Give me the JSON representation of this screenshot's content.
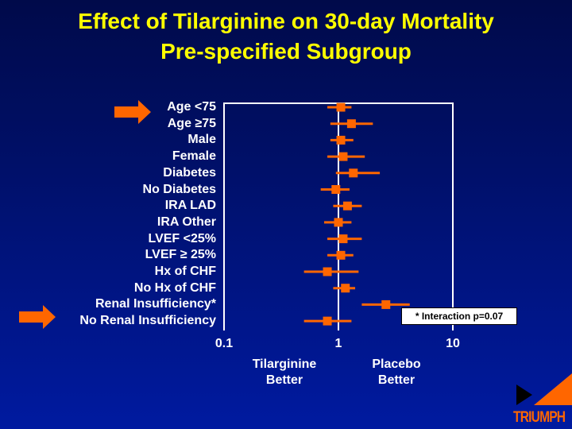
{
  "title": {
    "line1": "Effect of Tilarginine on 30-day Mortality",
    "line2": "Pre-specified Subgroup"
  },
  "chart_data": {
    "type": "forest",
    "xscale": "log",
    "xlim": [
      0.1,
      10
    ],
    "xticks": [
      "0.1",
      "1",
      "10"
    ],
    "reference_line": 1,
    "categories": [
      "Age <75",
      "Age ≥75",
      "Male",
      "Female",
      "Diabetes",
      "No Diabetes",
      "IRA LAD",
      "IRA Other",
      "LVEF <25%",
      "LVEF ≥ 25%",
      "Hx of CHF",
      "No Hx of CHF",
      "Renal Insufficiency*",
      "No Renal Insufficiency"
    ],
    "estimates": [
      1.05,
      1.3,
      1.05,
      1.1,
      1.35,
      0.95,
      1.2,
      1.0,
      1.1,
      1.05,
      0.8,
      1.15,
      2.6,
      0.8
    ],
    "ci_low": [
      0.8,
      0.85,
      0.85,
      0.8,
      0.95,
      0.7,
      0.9,
      0.75,
      0.8,
      0.8,
      0.5,
      0.9,
      1.6,
      0.5
    ],
    "ci_high": [
      1.3,
      2.0,
      1.35,
      1.7,
      2.3,
      1.25,
      1.6,
      1.3,
      1.6,
      1.35,
      1.5,
      1.4,
      4.2,
      1.3
    ],
    "xlabel_left": [
      "Tilarginine",
      "Better"
    ],
    "xlabel_right": [
      "Placebo",
      "Better"
    ],
    "annotation": "* Interaction p=0.07",
    "highlighted_rows": [
      0,
      12
    ],
    "colors": {
      "marker": "#ff6600",
      "arrow": "#ff6600",
      "frame": "#ffffff",
      "title": "#ffff00"
    }
  },
  "logo": {
    "text": "TRIUMPH"
  }
}
